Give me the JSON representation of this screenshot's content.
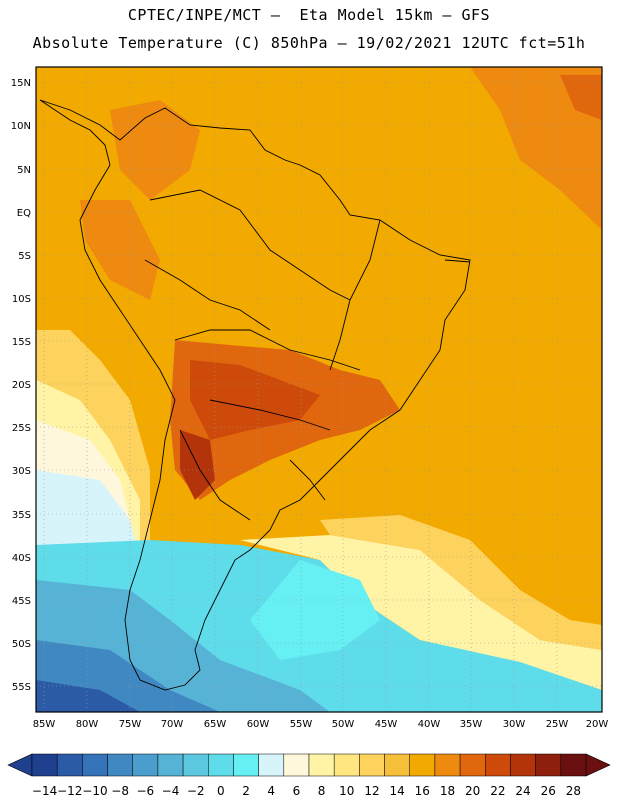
{
  "header": {
    "line1": "CPTEC/INPE/MCT –  Eta Model 15km – GFS",
    "line2": "Absolute Temperature (C) 850hPa – 19/02/2021 12UTC fct=51h"
  },
  "map": {
    "lat_labels": [
      "15N",
      "10N",
      "5N",
      "EQ",
      "5S",
      "10S",
      "15S",
      "20S",
      "25S",
      "30S",
      "35S",
      "40S",
      "45S",
      "50S",
      "55S"
    ],
    "lon_labels": [
      "85W",
      "80W",
      "75W",
      "70W",
      "65W",
      "60W",
      "55W",
      "50W",
      "45W",
      "40W",
      "35W",
      "30W",
      "25W",
      "20W"
    ]
  },
  "colorbar": {
    "labels": [
      "-14",
      "-12",
      "-10",
      "-8",
      "-6",
      "-4",
      "-2",
      "0",
      "2",
      "4",
      "6",
      "8",
      "10",
      "12",
      "14",
      "16",
      "18",
      "20",
      "22",
      "24",
      "26",
      "28"
    ],
    "colors": [
      "#1f3f8f",
      "#2b5aa6",
      "#3573b8",
      "#3f88c2",
      "#4a9dcc",
      "#57b3d6",
      "#5cc8e0",
      "#5fdcea",
      "#66f0f3",
      "#d8f4fb",
      "#fff7dc",
      "#fff3a6",
      "#ffe680",
      "#fdd35e",
      "#f6bf3a",
      "#f2a900",
      "#ee8a0f",
      "#e0670d",
      "#cd4a0a",
      "#b3330a",
      "#8e1f0c",
      "#6b1010"
    ]
  }
}
